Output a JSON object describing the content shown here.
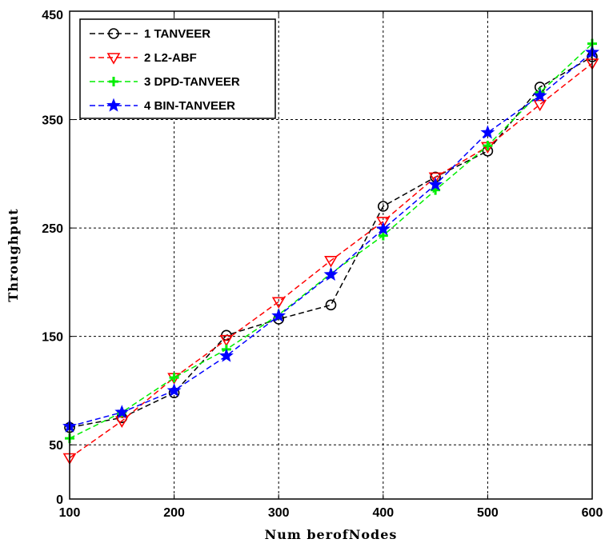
{
  "chart_data": {
    "type": "line",
    "xlabel": "Num berofNodes",
    "ylabel": "Throughput",
    "x": [
      100,
      150,
      200,
      250,
      300,
      350,
      400,
      450,
      500,
      550,
      600
    ],
    "xlim": [
      100,
      600
    ],
    "ylim": [
      0,
      450
    ],
    "xticks": [
      "100",
      "200",
      "300",
      "400",
      "500",
      "600"
    ],
    "yticks": [
      "0",
      "50",
      "150",
      "250",
      "350",
      "450"
    ],
    "grid": true,
    "legend_position": "top-left",
    "series": [
      {
        "name": "1 TANVEER",
        "color": "#000000",
        "marker": "circle",
        "values": [
          66,
          75,
          98,
          151,
          166,
          179,
          270,
          297,
          321,
          380,
          408
        ]
      },
      {
        "name": "2 L2-ABF",
        "color": "#ff0000",
        "marker": "triangle-down",
        "values": [
          38,
          72,
          112,
          147,
          182,
          220,
          256,
          297,
          325,
          364,
          402
        ]
      },
      {
        "name": "3 DPD-TANVEER",
        "color": "#00ee00",
        "marker": "plus",
        "values": [
          56,
          80,
          112,
          138,
          170,
          208,
          243,
          285,
          326,
          375,
          420
        ]
      },
      {
        "name": "4 BIN-TANVEER",
        "color": "#0000ff",
        "marker": "star",
        "values": [
          67,
          80,
          100,
          132,
          169,
          207,
          249,
          290,
          338,
          372,
          412
        ]
      }
    ]
  }
}
